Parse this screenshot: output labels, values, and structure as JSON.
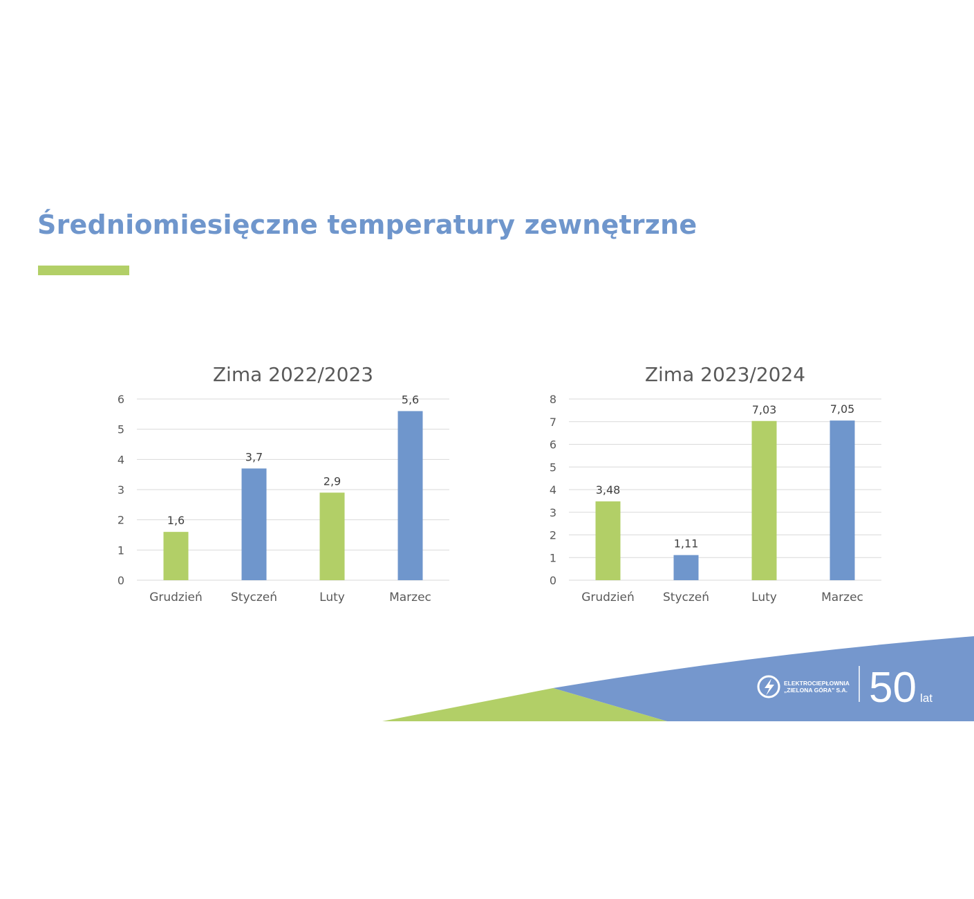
{
  "slide": {
    "title": "Średniomiesięczne temperatury zewnętrzne"
  },
  "colors": {
    "accent_green": "#b2cf67",
    "accent_blue": "#6f96cc",
    "title_blue": "#6f96cc"
  },
  "footer": {
    "logo_line1": "ELEKTROCIEPŁOWNIA",
    "logo_line2": "„ZIELONA GÓRA\" S.A.",
    "anniversary_number": "50",
    "anniversary_unit": "lat"
  },
  "chart_data": [
    {
      "type": "bar",
      "title": "Zima 2022/2023",
      "categories": [
        "Grudzień",
        "Styczeń",
        "Luty",
        "Marzec"
      ],
      "values": [
        1.6,
        3.7,
        2.9,
        5.6
      ],
      "value_labels": [
        "1,6",
        "3,7",
        "2,9",
        "5,6"
      ],
      "bar_colors": [
        "#b2cf67",
        "#6f96cc",
        "#b2cf67",
        "#6f96cc"
      ],
      "ylim": [
        0,
        6
      ],
      "yticks": [
        0,
        1,
        2,
        3,
        4,
        5,
        6
      ],
      "grid": true,
      "legend": "none",
      "xlabel": "",
      "ylabel": ""
    },
    {
      "type": "bar",
      "title": "Zima 2023/2024",
      "categories": [
        "Grudzień",
        "Styczeń",
        "Luty",
        "Marzec"
      ],
      "values": [
        3.48,
        1.11,
        7.03,
        7.05
      ],
      "value_labels": [
        "3,48",
        "1,11",
        "7,03",
        "7,05"
      ],
      "bar_colors": [
        "#b2cf67",
        "#6f96cc",
        "#b2cf67",
        "#6f96cc"
      ],
      "ylim": [
        0,
        8
      ],
      "yticks": [
        0,
        1,
        2,
        3,
        4,
        5,
        6,
        7,
        8
      ],
      "grid": true,
      "legend": "none",
      "xlabel": "",
      "ylabel": ""
    }
  ]
}
